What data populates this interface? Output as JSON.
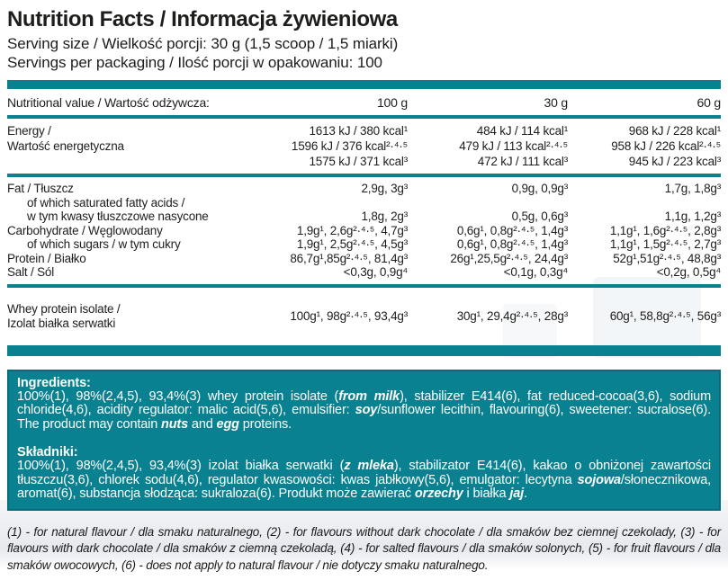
{
  "colors": {
    "teal": "#0a8191",
    "teal_dark": "#076b79",
    "text": "#1d1d1b"
  },
  "header": {
    "title": "Nutrition Facts / Informacja żywieniowa",
    "serving_size": "Serving size / Wielkość porcji: 30 g (1,5 scoop / 1,5 miarki)",
    "servings": "Servings per packaging / Ilość porcji w opakowaniu: 100"
  },
  "table": {
    "header": {
      "label": "Nutritional value / Wartość odżywcza:",
      "col_100": "100 g",
      "col_30": "30 g",
      "col_60": "60 g"
    },
    "energy": {
      "label": "Energy /\nWartość energetyczna",
      "v100": "1613 kJ / 380 kcal¹\n1596 kJ / 376 kcal²·⁴·⁵\n1575 kJ / 371 kcal³",
      "v30": "484 kJ / 114 kcal¹\n479 kJ / 113 kcal²·⁴·⁵\n472 kJ / 111 kcal³",
      "v60": "968 kJ / 228 kcal¹\n958 kJ / 226 kcal²·⁴·⁵\n945 kJ / 223 kcal³"
    },
    "fat": {
      "label": "Fat / Tłuszcz",
      "v100": "2,9g, 3g³",
      "v30": "0,9g, 0,9g³",
      "v60": "1,7g, 1,8g³"
    },
    "sat_fat": {
      "label": "of which saturated fatty acids /\nw tym kwasy tłuszczowe nasycone",
      "v100": "1,8g, 2g³",
      "v30": "0,5g, 0,6g³",
      "v60": "1,1g, 1,2g³"
    },
    "carbohydrate": {
      "label": "Carbohydrate / Węglowodany",
      "v100": "1,9g¹, 2,6g²·⁴·⁵, 4,7g³",
      "v30": "0,6g¹, 0,8g²·⁴·⁵, 1,4g³",
      "v60": "1,1g¹, 1,6g²·⁴·⁵, 2,8g³"
    },
    "sugars": {
      "label": "of which sugars / w tym cukry",
      "v100": "1,9g¹, 2,5g²·⁴·⁵, 4,5g³",
      "v30": "0,6g¹, 0,8g²·⁴·⁵, 1,4g³",
      "v60": "1,1g¹, 1,5g²·⁴·⁵, 2,7g³"
    },
    "protein": {
      "label": "Protein / Białko",
      "v100": "86,7g¹,85g²·⁴·⁵, 81,4g³",
      "v30": "26g¹,25,5g²·⁴·⁵, 24,4g³",
      "v60": "52g¹,51g²·⁴·⁵, 48,8g³"
    },
    "salt": {
      "label": "Salt / Sól",
      "v100": "<0,3g, 0,9g⁴",
      "v30": "<0,1g, 0,3g⁴",
      "v60": "<0,2g, 0,5g⁴"
    },
    "whey": {
      "label": "Whey protein isolate /\nIzolat białka serwatki",
      "v100": "100g¹, 98g²·⁴·⁵, 93,4g³",
      "v30": "30g¹, 29,4g²·⁴·⁵, 28g³",
      "v60": "60g¹, 58,8g²·⁴·⁵, 56g³"
    }
  },
  "ingredients_en": {
    "heading": "Ingredients:",
    "segments": [
      {
        "t": "100%(1), 98%(2,4,5), 93,4%(3) whey protein isolate ("
      },
      {
        "t": "from milk",
        "b": true
      },
      {
        "t": "), stabilizer E414(6), fat reduced-cocoa(3,6), sodium chloride(4,6), acidity regulator: malic acid(5,6), emulsifier: "
      },
      {
        "t": "soy",
        "b": true
      },
      {
        "t": "/sunflower lecithin, flavouring(6), sweetener: sucralose(6). The product may contain "
      },
      {
        "t": "nuts",
        "b": true
      },
      {
        "t": " and "
      },
      {
        "t": "egg",
        "b": true
      },
      {
        "t": " proteins."
      }
    ]
  },
  "ingredients_pl": {
    "heading": "Składniki:",
    "segments": [
      {
        "t": "100%(1), 98%(2,4,5), 93,4%(3) izolat białka serwatki ("
      },
      {
        "t": "z mleka",
        "b": true
      },
      {
        "t": "), stabilizator E414(6), kakao o obniżonej zawartości tłuszczu(3,6), chlorek sodu(4,6), regulator kwasowości: kwas jabłkowy(5,6), emulgator: lecytyna "
      },
      {
        "t": "sojowa",
        "b": true
      },
      {
        "t": "/słonecznikowa, aromat(6), substancja słodząca: sukraloza(6). Produkt może zawierać "
      },
      {
        "t": "orzechy",
        "b": true
      },
      {
        "t": " i białka "
      },
      {
        "t": "jaj",
        "b": true
      },
      {
        "t": "."
      }
    ]
  },
  "footnotes": "(1) - for natural flavour / dla smaku naturalnego, (2) - for flavours without dark chocolate / dla smaków bez ciemnej czekolady, (3) - for flavours with dark chocolate / dla smaków z ciemną czekoladą, (4) - for salted flavours / dla smaków solonych, (5) - for fruit flavours / dla smaków owocowych, (6) - does not apply to natural flavour / nie dotyczy smaku naturalnego."
}
